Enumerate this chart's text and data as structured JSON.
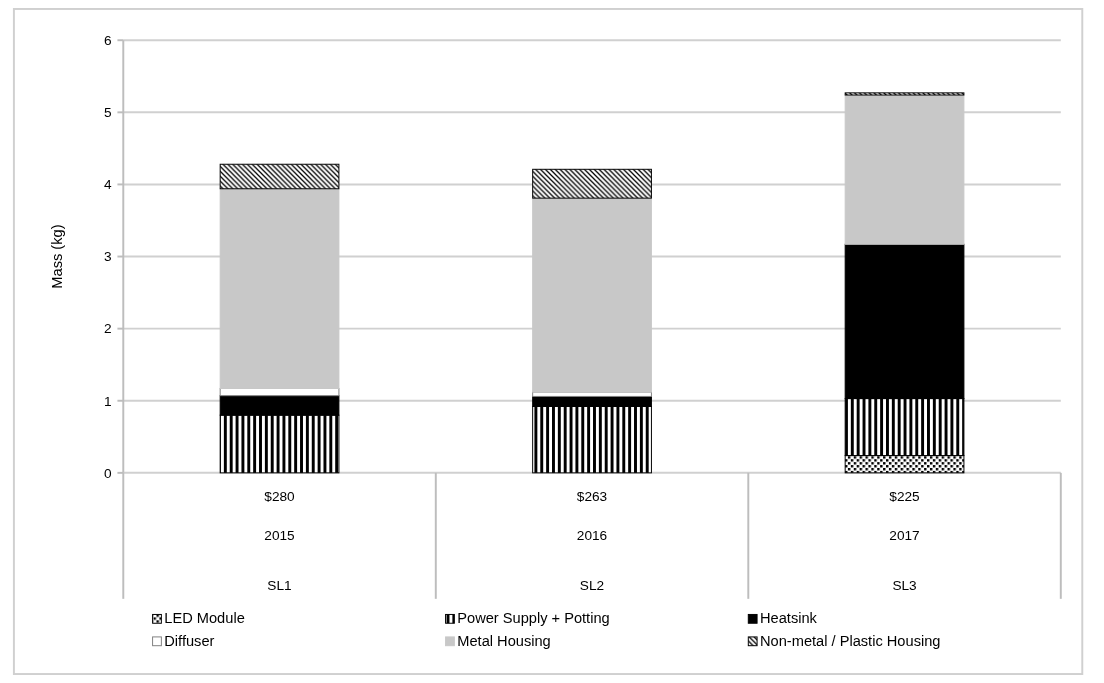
{
  "chart_data": {
    "type": "bar",
    "stacked": true,
    "ylabel": "Mass (kg)",
    "categories": [
      "$280\n2015\nSL1",
      "$263\n2016\nSL2",
      "$225\n2017\nSL3"
    ],
    "series": [
      {
        "name": "LED Module",
        "color": "#000000",
        "values": [
          0,
          0,
          0.24
        ]
      },
      {
        "name": "Power Supply + Potting",
        "color": "#000000",
        "values": [
          0.8,
          0.92,
          0.79
        ]
      },
      {
        "name": "Heatsink",
        "color": "#000000",
        "values": [
          0.27,
          0.14,
          2.14
        ]
      },
      {
        "name": "Diffuser",
        "color": "#ffffff",
        "values": [
          0.1,
          0.06,
          0
        ]
      },
      {
        "name": "Metal Housing",
        "color": "#c8c8c8",
        "values": [
          2.77,
          2.69,
          2.07
        ]
      },
      {
        "name": "Non-metal / Plastic Housing",
        "color": "#000000",
        "values": [
          0.34,
          0.4,
          0.03
        ]
      }
    ],
    "ylim": [
      0,
      6
    ],
    "yticks": [
      0,
      1,
      2,
      3,
      4,
      5,
      6
    ],
    "grid": "y",
    "legend": "bottom"
  }
}
